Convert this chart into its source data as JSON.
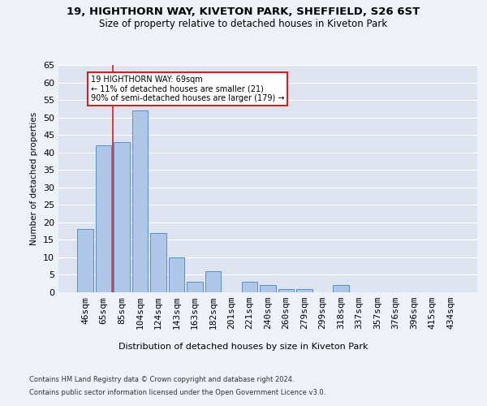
{
  "title_line1": "19, HIGHTHORN WAY, KIVETON PARK, SHEFFIELD, S26 6ST",
  "title_line2": "Size of property relative to detached houses in Kiveton Park",
  "xlabel": "Distribution of detached houses by size in Kiveton Park",
  "ylabel": "Number of detached properties",
  "footer_line1": "Contains HM Land Registry data © Crown copyright and database right 2024.",
  "footer_line2": "Contains public sector information licensed under the Open Government Licence v3.0.",
  "categories": [
    "46sqm",
    "65sqm",
    "85sqm",
    "104sqm",
    "124sqm",
    "143sqm",
    "163sqm",
    "182sqm",
    "201sqm",
    "221sqm",
    "240sqm",
    "260sqm",
    "279sqm",
    "299sqm",
    "318sqm",
    "337sqm",
    "357sqm",
    "376sqm",
    "396sqm",
    "415sqm",
    "434sqm"
  ],
  "values": [
    18,
    42,
    43,
    52,
    17,
    10,
    3,
    6,
    0,
    3,
    2,
    1,
    1,
    0,
    2,
    0,
    0,
    0,
    0,
    0,
    0
  ],
  "bar_color": "#aec6e8",
  "bar_edge_color": "#5a8fc2",
  "vline_x": 1.5,
  "vline_color": "#cc2222",
  "annotation_text": "19 HIGHTHORN WAY: 69sqm\n← 11% of detached houses are smaller (21)\n90% of semi-detached houses are larger (179) →",
  "annotation_box_color": "#ffffff",
  "annotation_box_edge": "#cc2222",
  "ylim": [
    0,
    65
  ],
  "yticks": [
    0,
    5,
    10,
    15,
    20,
    25,
    30,
    35,
    40,
    45,
    50,
    55,
    60,
    65
  ],
  "background_color": "#eef2f8",
  "axes_bg_color": "#dde4f0",
  "grid_color": "#ffffff",
  "title_fontsize": 9.5,
  "subtitle_fontsize": 8.5,
  "bar_width": 0.85
}
